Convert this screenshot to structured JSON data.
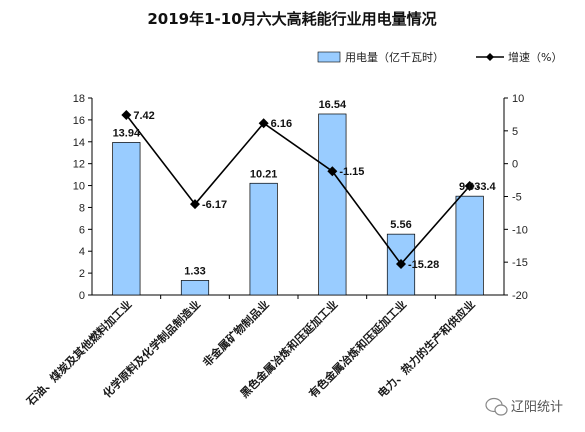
{
  "chart_data": {
    "type": "bar+line",
    "title": "2019年1-10月六大高耗能行业用电量情况",
    "categories": [
      "石油、煤炭及其他燃料加工业",
      "化学原料及化学制品制造业",
      "非金属矿物制品业",
      "黑色金属冶炼和压延加工业",
      "有色金属冶炼和压延加工业",
      "电力、热力的生产和供应业"
    ],
    "series": [
      {
        "name": "用电量（亿千瓦时）",
        "type": "bar",
        "axis": "left",
        "color": "#99ccff",
        "values": [
          13.94,
          1.33,
          10.21,
          16.54,
          5.56,
          9.03
        ]
      },
      {
        "name": "增速（%）",
        "type": "line",
        "axis": "right",
        "color": "#000000",
        "values": [
          7.42,
          -6.17,
          6.16,
          -1.15,
          -15.28,
          -3.4
        ]
      }
    ],
    "bar_labels": [
      "13.94",
      "1.33",
      "10.21",
      "16.54",
      "5.56",
      "9.03"
    ],
    "line_labels": [
      "7.42",
      "-6.17",
      "6.16",
      "-1.15",
      "-15.28",
      "-3.4"
    ],
    "left_axis": {
      "ylim": [
        0,
        18
      ],
      "ticks": [
        "0",
        "2",
        "4",
        "6",
        "8",
        "10",
        "12",
        "14",
        "16",
        "18"
      ]
    },
    "right_axis": {
      "ylim": [
        -20,
        10
      ],
      "ticks": [
        "-20",
        "-15",
        "-10",
        "-5",
        "0",
        "5",
        "10"
      ]
    },
    "legend_position": "top-right",
    "grid": false
  },
  "watermark": {
    "text": "辽阳统计",
    "icon": "wechat-icon"
  }
}
